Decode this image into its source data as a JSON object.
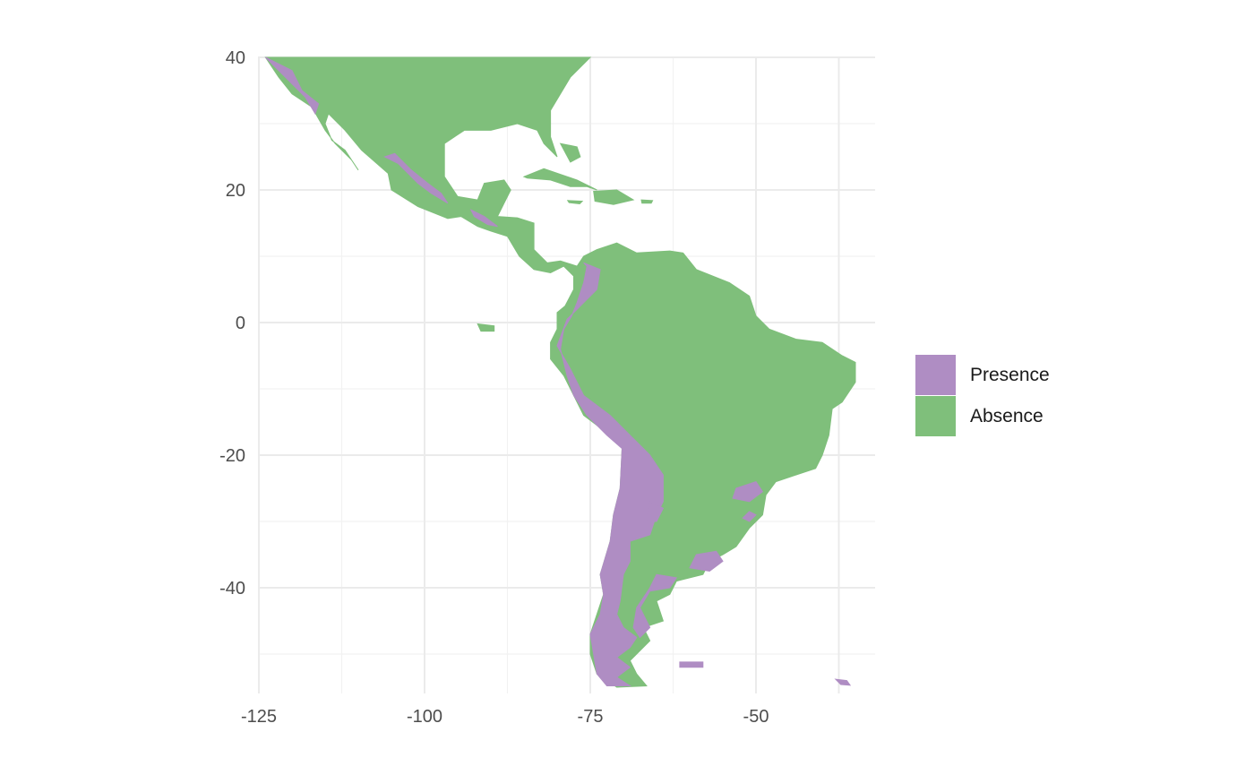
{
  "chart_data": {
    "type": "raster-map",
    "title": "",
    "xlabel": "",
    "ylabel": "",
    "xlim": [
      -125,
      -32
    ],
    "ylim": [
      -56,
      40
    ],
    "x_ticks": [
      "-125",
      "-100",
      "-75",
      "-50"
    ],
    "y_ticks": [
      "40",
      "20",
      "0",
      "-20",
      "-40"
    ],
    "grid": true,
    "legend": {
      "placement": "right",
      "entries": [
        {
          "label": "Presence",
          "color": "#af8dc3"
        },
        {
          "label": "Absence",
          "color": "#7fbf7b"
        }
      ]
    },
    "regions": [
      {
        "class": "Absence",
        "lonlat": [
          [
            -124,
            40
          ],
          [
            -75,
            40
          ],
          [
            -78,
            37
          ],
          [
            -81,
            32
          ],
          [
            -81,
            28
          ],
          [
            -80,
            25
          ],
          [
            -82,
            27
          ],
          [
            -83,
            29
          ],
          [
            -86,
            30
          ],
          [
            -90,
            29
          ],
          [
            -94,
            29
          ],
          [
            -97,
            27
          ],
          [
            -97,
            22
          ],
          [
            -95,
            19
          ],
          [
            -92,
            18.5
          ],
          [
            -91,
            21
          ],
          [
            -88,
            21.5
          ],
          [
            -87,
            20
          ],
          [
            -88,
            18
          ],
          [
            -89,
            16
          ],
          [
            -86,
            15.8
          ],
          [
            -83.5,
            15
          ],
          [
            -83.5,
            11
          ],
          [
            -81.5,
            9
          ],
          [
            -79.5,
            9.3
          ],
          [
            -77,
            8.5
          ],
          [
            -76,
            10
          ],
          [
            -74,
            11
          ],
          [
            -71,
            12
          ],
          [
            -68,
            10.5
          ],
          [
            -63,
            10.8
          ],
          [
            -61,
            10.5
          ],
          [
            -59,
            8
          ],
          [
            -54,
            6
          ],
          [
            -51,
            4
          ],
          [
            -50,
            1
          ],
          [
            -48,
            -1
          ],
          [
            -44,
            -2.5
          ],
          [
            -40,
            -3
          ],
          [
            -37,
            -5
          ],
          [
            -35,
            -6
          ],
          [
            -35,
            -9
          ],
          [
            -37,
            -12
          ],
          [
            -38.5,
            -13
          ],
          [
            -39,
            -17
          ],
          [
            -40,
            -20
          ],
          [
            -41,
            -22
          ],
          [
            -44,
            -23
          ],
          [
            -47,
            -24
          ],
          [
            -48.5,
            -26
          ],
          [
            -49,
            -29
          ],
          [
            -51,
            -31
          ],
          [
            -53,
            -33.8
          ],
          [
            -55,
            -35
          ],
          [
            -57,
            -36
          ],
          [
            -58,
            -38
          ],
          [
            -62,
            -39
          ],
          [
            -63,
            -41
          ],
          [
            -65,
            -42
          ],
          [
            -64,
            -45
          ],
          [
            -67,
            -46
          ],
          [
            -66,
            -48
          ],
          [
            -69,
            -51
          ],
          [
            -68,
            -53
          ],
          [
            -66.5,
            -54.8
          ],
          [
            -71,
            -55
          ],
          [
            -74,
            -53
          ],
          [
            -75,
            -50
          ],
          [
            -75,
            -47
          ],
          [
            -74,
            -44
          ],
          [
            -73,
            -41
          ],
          [
            -73.5,
            -38
          ],
          [
            -72,
            -33
          ],
          [
            -71.5,
            -29
          ],
          [
            -70.5,
            -25
          ],
          [
            -70.2,
            -19
          ],
          [
            -72,
            -17
          ],
          [
            -76,
            -14
          ],
          [
            -77,
            -12
          ],
          [
            -79,
            -8
          ],
          [
            -81,
            -5.5
          ],
          [
            -81,
            -3
          ],
          [
            -80,
            -1
          ],
          [
            -80,
            1.5
          ],
          [
            -78.8,
            2.5
          ],
          [
            -77.5,
            5
          ],
          [
            -77.5,
            7
          ],
          [
            -79,
            8.5
          ],
          [
            -81,
            7.5
          ],
          [
            -83.5,
            8
          ],
          [
            -85.7,
            10
          ],
          [
            -87.5,
            13
          ],
          [
            -90,
            13.8
          ],
          [
            -92,
            14.5
          ],
          [
            -94.5,
            16
          ],
          [
            -96.5,
            15.7
          ],
          [
            -101,
            17.5
          ],
          [
            -105,
            20
          ],
          [
            -105.5,
            22.5
          ],
          [
            -109.5,
            26
          ],
          [
            -112,
            29
          ],
          [
            -114.5,
            31.5
          ],
          [
            -115,
            30
          ],
          [
            -114,
            27.5
          ],
          [
            -112,
            26
          ],
          [
            -110,
            23
          ],
          [
            -111,
            24.5
          ],
          [
            -113.5,
            27
          ],
          [
            -115,
            29
          ],
          [
            -117,
            32.5
          ],
          [
            -120,
            34.5
          ],
          [
            -122,
            37
          ],
          [
            -124,
            40
          ]
        ]
      },
      {
        "class": "Absence",
        "lonlat": [
          [
            -85,
            22
          ],
          [
            -82,
            23.2
          ],
          [
            -77,
            21.5
          ],
          [
            -74,
            20
          ],
          [
            -75.5,
            20.5
          ],
          [
            -78,
            20.5
          ],
          [
            -81,
            21.5
          ],
          [
            -84.5,
            21.8
          ]
        ]
      },
      {
        "class": "Absence",
        "lonlat": [
          [
            -74.5,
            19.8
          ],
          [
            -71,
            20
          ],
          [
            -68.5,
            18.5
          ],
          [
            -71.5,
            17.8
          ],
          [
            -74.3,
            18.3
          ]
        ]
      },
      {
        "class": "Absence",
        "lonlat": [
          [
            -78.4,
            18.4
          ],
          [
            -76.2,
            18.3
          ],
          [
            -76.6,
            17.9
          ],
          [
            -78.2,
            18.1
          ]
        ]
      },
      {
        "class": "Absence",
        "lonlat": [
          [
            -67.3,
            18.5
          ],
          [
            -65.6,
            18.4
          ],
          [
            -65.8,
            18
          ],
          [
            -67.2,
            18
          ]
        ]
      },
      {
        "class": "Absence",
        "lonlat": [
          [
            -92,
            -0.2
          ],
          [
            -89.5,
            -0.5
          ],
          [
            -89.5,
            -1.3
          ],
          [
            -91.5,
            -1.3
          ]
        ]
      },
      {
        "class": "Absence",
        "lonlat": [
          [
            -79.5,
            27
          ],
          [
            -77,
            26.5
          ],
          [
            -76.5,
            25
          ],
          [
            -78,
            24.2
          ]
        ]
      },
      {
        "class": "Presence",
        "lonlat": [
          [
            -124,
            40
          ],
          [
            -120,
            38
          ],
          [
            -118.5,
            35
          ],
          [
            -116,
            33
          ],
          [
            -116.5,
            31.5
          ],
          [
            -118,
            34
          ],
          [
            -121,
            37
          ],
          [
            -123,
            39
          ]
        ]
      },
      {
        "class": "Presence",
        "lonlat": [
          [
            -106,
            25
          ],
          [
            -104,
            24
          ],
          [
            -101,
            21
          ],
          [
            -99,
            19.5
          ],
          [
            -96.5,
            18
          ],
          [
            -97.5,
            19.5
          ],
          [
            -99.5,
            21
          ],
          [
            -102,
            23
          ],
          [
            -104.5,
            25.5
          ]
        ]
      },
      {
        "class": "Presence",
        "lonlat": [
          [
            -93,
            17
          ],
          [
            -91,
            16
          ],
          [
            -89,
            14.5
          ],
          [
            -90.5,
            14.8
          ],
          [
            -92.5,
            16
          ]
        ]
      },
      {
        "class": "Presence",
        "lonlat": [
          [
            -76,
            9
          ],
          [
            -73.5,
            8
          ],
          [
            -74,
            5
          ],
          [
            -76,
            3
          ],
          [
            -78.5,
            0.5
          ],
          [
            -80,
            -3.5
          ],
          [
            -78,
            -7
          ],
          [
            -76,
            -11
          ],
          [
            -72,
            -14
          ],
          [
            -69,
            -17
          ],
          [
            -67.5,
            -18.5
          ],
          [
            -66,
            -20
          ],
          [
            -64,
            -23
          ],
          [
            -64,
            -27
          ],
          [
            -65,
            -29
          ],
          [
            -66,
            -32
          ],
          [
            -69,
            -33
          ],
          [
            -69,
            -36
          ],
          [
            -70,
            -38
          ],
          [
            -70.5,
            -42
          ],
          [
            -71,
            -44
          ],
          [
            -70,
            -46
          ],
          [
            -68,
            -47.5
          ],
          [
            -69,
            -49
          ],
          [
            -71,
            -50.5
          ],
          [
            -69,
            -52
          ],
          [
            -71,
            -53.5
          ],
          [
            -69,
            -54.8
          ],
          [
            -72.5,
            -54.8
          ],
          [
            -74,
            -53
          ],
          [
            -74.5,
            -50
          ],
          [
            -75,
            -47
          ],
          [
            -73.5,
            -44
          ],
          [
            -73,
            -41
          ],
          [
            -73.5,
            -38
          ],
          [
            -72,
            -33
          ],
          [
            -71.5,
            -29
          ],
          [
            -70.5,
            -25
          ],
          [
            -70.2,
            -19
          ],
          [
            -72.5,
            -17
          ],
          [
            -75.5,
            -14
          ],
          [
            -77.5,
            -11
          ],
          [
            -78.5,
            -8
          ],
          [
            -79.5,
            -4
          ],
          [
            -79,
            -1
          ],
          [
            -77.8,
            1
          ],
          [
            -77,
            3
          ],
          [
            -76,
            6
          ],
          [
            -75.5,
            8.5
          ]
        ]
      },
      {
        "class": "Presence",
        "lonlat": [
          [
            -66,
            -27
          ],
          [
            -64,
            -28
          ],
          [
            -65,
            -30
          ],
          [
            -66.5,
            -30
          ]
        ]
      },
      {
        "class": "Presence",
        "lonlat": [
          [
            -65,
            -38
          ],
          [
            -62,
            -38.5
          ],
          [
            -63,
            -40
          ],
          [
            -66,
            -40.5
          ],
          [
            -67.5,
            -43
          ],
          [
            -66,
            -46
          ],
          [
            -67.5,
            -47.5
          ],
          [
            -68.5,
            -46
          ],
          [
            -68,
            -43
          ],
          [
            -66,
            -40
          ]
        ]
      },
      {
        "class": "Presence",
        "lonlat": [
          [
            -59,
            -35
          ],
          [
            -56,
            -34.5
          ],
          [
            -55,
            -36
          ],
          [
            -57,
            -37.5
          ],
          [
            -60,
            -37
          ]
        ]
      },
      {
        "class": "Presence",
        "lonlat": [
          [
            -53,
            -25
          ],
          [
            -50,
            -24
          ],
          [
            -49,
            -25.5
          ],
          [
            -51,
            -27
          ],
          [
            -53.5,
            -26.5
          ]
        ]
      },
      {
        "class": "Presence",
        "lonlat": [
          [
            -51,
            -28.5
          ],
          [
            -50,
            -29
          ],
          [
            -51,
            -30
          ],
          [
            -52,
            -29.5
          ]
        ]
      },
      {
        "class": "Presence",
        "lonlat": [
          [
            -61.5,
            -51.2
          ],
          [
            -58,
            -51.2
          ],
          [
            -58,
            -52
          ],
          [
            -61.5,
            -52
          ]
        ]
      },
      {
        "class": "Presence",
        "lonlat": [
          [
            -38,
            -53.8
          ],
          [
            -36.3,
            -54
          ],
          [
            -35.8,
            -54.7
          ],
          [
            -37.2,
            -54.6
          ]
        ]
      }
    ]
  }
}
